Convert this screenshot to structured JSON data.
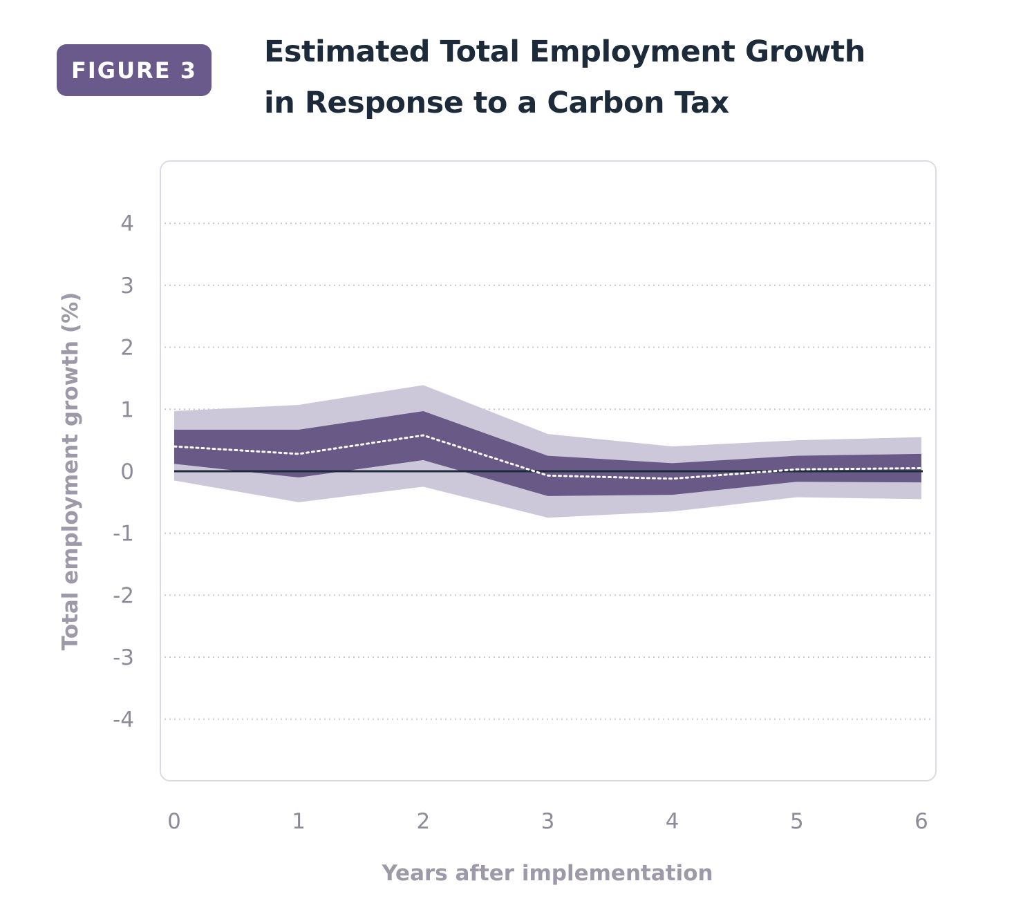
{
  "badge": "FIGURE 3",
  "title_lines": [
    "Estimated Total Employment Growth",
    "in Response to a Carbon Tax"
  ],
  "colors": {
    "badge": "#6a5a8c",
    "outer_band": "#cdc7da",
    "inner_band": "#685987",
    "estimate_line": "#ffffff",
    "zero_line": "#1d2a3a",
    "grid": "#c9c6cf",
    "frame": "#dcdae2"
  },
  "chart_data": {
    "type": "area",
    "title": "Estimated Total Employment Growth in Response to a Carbon Tax",
    "xlabel": "Years after implementation",
    "ylabel": "Total employment growth (%)",
    "x": [
      0,
      1,
      2,
      3,
      4,
      5,
      6
    ],
    "xlim": [
      0,
      6
    ],
    "ylim": [
      -5,
      4.5
    ],
    "yticks": [
      4,
      3,
      2,
      1,
      0,
      -1,
      -2,
      -3,
      -4
    ],
    "xticks": [
      0,
      1,
      2,
      3,
      4,
      5,
      6
    ],
    "grid": "horizontal dotted",
    "series": [
      {
        "role": "outer_upper",
        "values": [
          0.97,
          1.07,
          1.39,
          0.6,
          0.4,
          0.5,
          0.55
        ]
      },
      {
        "role": "outer_lower",
        "values": [
          -0.15,
          -0.5,
          -0.25,
          -0.75,
          -0.65,
          -0.42,
          -0.45
        ]
      },
      {
        "role": "inner_upper",
        "values": [
          0.67,
          0.67,
          0.97,
          0.25,
          0.13,
          0.25,
          0.28
        ]
      },
      {
        "role": "inner_lower",
        "values": [
          0.12,
          -0.1,
          0.18,
          -0.4,
          -0.38,
          -0.17,
          -0.18
        ]
      },
      {
        "role": "estimate",
        "values": [
          0.4,
          0.28,
          0.58,
          -0.07,
          -0.12,
          0.03,
          0.05
        ]
      }
    ]
  }
}
